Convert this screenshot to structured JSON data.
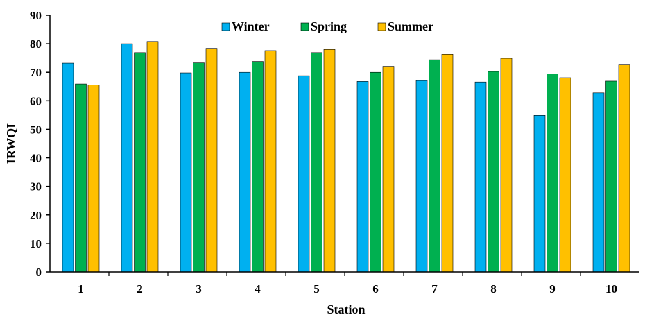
{
  "chart_data": {
    "type": "bar",
    "title": "",
    "xlabel": "Station",
    "ylabel": "IRWQI",
    "ylim": [
      0,
      90
    ],
    "yticks": [
      "0",
      "10",
      "20",
      "30",
      "40",
      "50",
      "60",
      "70",
      "80",
      "90"
    ],
    "categories": [
      "1",
      "2",
      "3",
      "4",
      "5",
      "6",
      "7",
      "8",
      "9",
      "10"
    ],
    "grid": false,
    "legend_position": "top-center",
    "series": [
      {
        "name": "Winter",
        "color": "#00B0F0",
        "values": [
          73.2,
          80.0,
          69.8,
          70.0,
          68.8,
          66.8,
          67.1,
          66.6,
          54.9,
          62.8
        ]
      },
      {
        "name": "Spring",
        "color": "#00B050",
        "values": [
          65.9,
          76.9,
          73.3,
          73.8,
          76.9,
          70.0,
          74.4,
          70.3,
          69.4,
          66.9
        ]
      },
      {
        "name": "Summer",
        "color": "#FFC000",
        "values": [
          65.6,
          80.8,
          78.4,
          77.6,
          78.0,
          72.1,
          76.3,
          74.9,
          68.1,
          72.8
        ]
      }
    ]
  }
}
